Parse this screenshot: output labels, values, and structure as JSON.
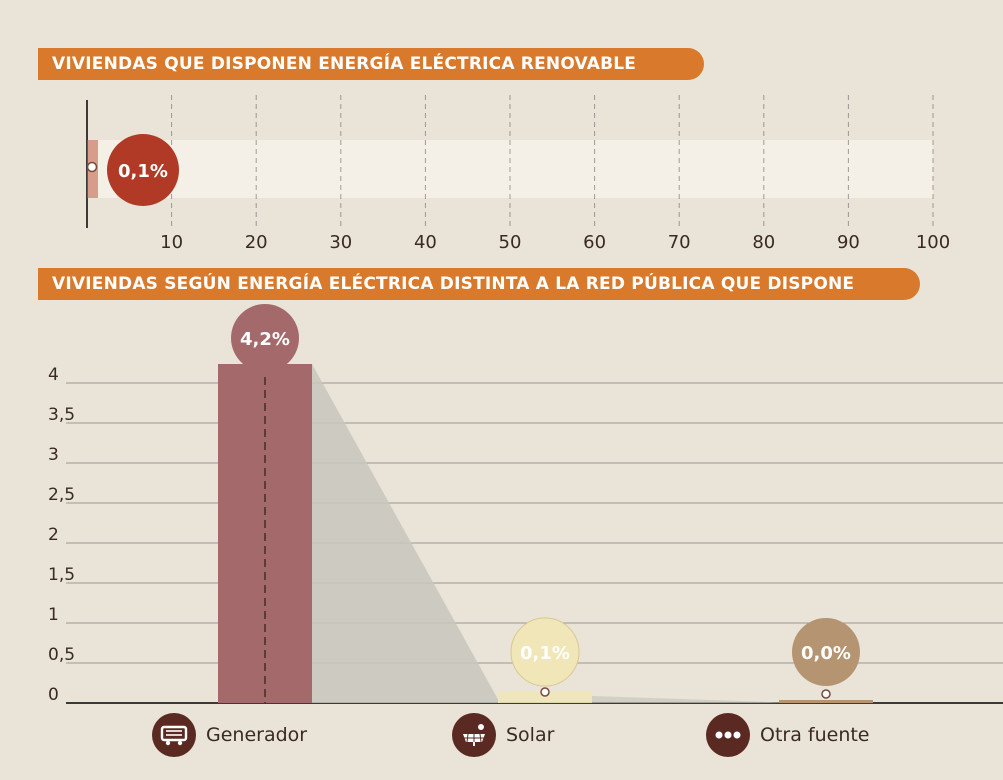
{
  "colors": {
    "background": "#e9e3d8",
    "banner": "#d9792b",
    "renewable_bar": "#c05a3e",
    "renewable_bubble": "#b03a26",
    "generador": "#a46a6b",
    "solar": "#f1e6b8",
    "otra": "#b59471",
    "shadow": "#c8c7bd",
    "grid": "#5a5a5a",
    "icon": "#5a2a22"
  },
  "chart_data": [
    {
      "type": "bar",
      "orientation": "horizontal",
      "title": "VIVIENDAS QUE DISPONEN ENERGÍA ELÉCTRICA RENOVABLE",
      "categories": [
        ""
      ],
      "values": [
        0.1
      ],
      "data_labels": [
        "0,1%"
      ],
      "xlim": [
        0,
        100
      ],
      "x_ticks": [
        10,
        20,
        30,
        40,
        50,
        60,
        70,
        80,
        90,
        100
      ],
      "grid": "dashed vertical"
    },
    {
      "type": "bar",
      "title": "VIVIENDAS SEGÚN ENERGÍA ELÉCTRICA DISTINTA A LA RED PÚBLICA QUE DISPONE",
      "categories": [
        "Generador",
        "Solar",
        "Otra fuente"
      ],
      "values": [
        4.2,
        0.1,
        0.0
      ],
      "data_labels": [
        "4,2%",
        "0,1%",
        "0,0%"
      ],
      "ylim": [
        0,
        4
      ],
      "y_ticks": [
        "0",
        "0,5",
        "1",
        "1,5",
        "2",
        "2,5",
        "3",
        "3,5",
        "4"
      ],
      "grid": "horizontal",
      "legend_position": "bottom"
    }
  ]
}
